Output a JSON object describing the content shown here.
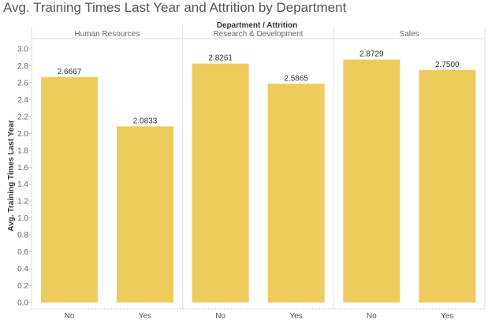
{
  "title": "Avg. Training Times Last Year and Attrition by Department",
  "chart_data": {
    "type": "bar",
    "title": "Avg. Training Times Last Year and Attrition by Department",
    "column_header": "Department / Attrition",
    "ylabel": "Avg. Training Times Last Year",
    "xlabel": "",
    "ylim": [
      0,
      3.0
    ],
    "yticks": [
      "3.0",
      "2.8",
      "2.6",
      "2.4",
      "2.2",
      "2.0",
      "1.8",
      "1.6",
      "1.4",
      "1.2",
      "1.0",
      "0.8",
      "0.6",
      "0.4",
      "0.2",
      "0.0"
    ],
    "grid": false,
    "bar_color": "#EDCB5D",
    "panels": [
      {
        "group": "Human Resources",
        "categories": [
          "No",
          "Yes"
        ],
        "values": [
          2.6667,
          2.0833
        ],
        "labels": [
          "2.6667",
          "2.0833"
        ]
      },
      {
        "group": "Research & Development",
        "categories": [
          "No",
          "Yes"
        ],
        "values": [
          2.8261,
          2.5865
        ],
        "labels": [
          "2.8261",
          "2.5865"
        ]
      },
      {
        "group": "Sales",
        "categories": [
          "No",
          "Yes"
        ],
        "values": [
          2.8729,
          2.75
        ],
        "labels": [
          "2.8729",
          "2.7500"
        ]
      }
    ]
  }
}
